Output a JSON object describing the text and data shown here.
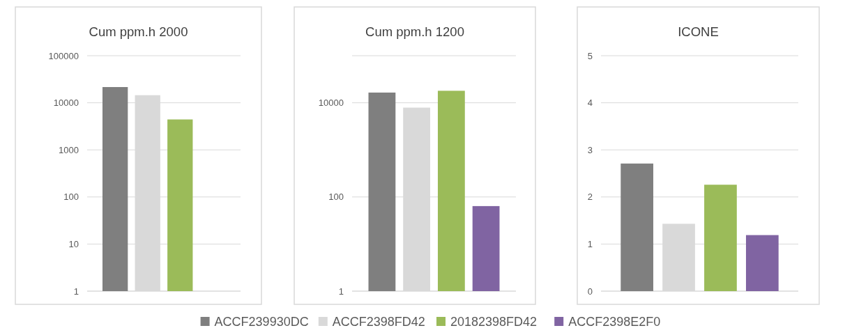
{
  "chart_data": [
    {
      "type": "bar",
      "title": "Cum ppm.h 2000",
      "categories": [
        null
      ],
      "log": true,
      "ylim": [
        1,
        100000
      ],
      "yticks": [
        1,
        10,
        100,
        1000,
        10000,
        100000
      ],
      "grid": "y",
      "legend": "bottom",
      "series": [
        {
          "name": "ACCF239930DC",
          "color": "#7f7f7f",
          "values": [
            21600
          ]
        },
        {
          "name": "ACCF2398FD42",
          "color": "#d9d9d9",
          "values": [
            14500
          ]
        },
        {
          "name": "20182398FD42",
          "color": "#9bbb59",
          "values": [
            4430
          ]
        },
        {
          "name": "ACCF2398E2F0",
          "color": "#8064a2",
          "values": [
            null
          ]
        }
      ]
    },
    {
      "type": "bar",
      "title": "Cum ppm.h 1200",
      "categories": [
        null
      ],
      "log": true,
      "ylim": [
        1,
        100000
      ],
      "yticks": [
        1,
        100,
        10000,
        {
          "value": 100000,
          "label": null
        }
      ],
      "grid": "y",
      "series": [
        {
          "color": "#7f7f7f",
          "values": [
            16500
          ]
        },
        {
          "color": "#d9d9d9",
          "values": [
            7900
          ]
        },
        {
          "color": "#9bbb59",
          "values": [
            18000
          ]
        },
        {
          "color": "#8064a2",
          "values": [
            64
          ]
        }
      ]
    },
    {
      "type": "bar",
      "title": "ICONE",
      "categories": [
        null
      ],
      "ylim": [
        0,
        5
      ],
      "yticks": [
        0,
        1,
        2,
        3,
        4,
        5
      ],
      "grid": "y",
      "series": [
        {
          "color": "#7f7f7f",
          "values": [
            2.71
          ]
        },
        {
          "color": "#d9d9d9",
          "values": [
            1.43
          ]
        },
        {
          "color": "#9bbb59",
          "values": [
            2.26
          ]
        },
        {
          "color": "#8064a2",
          "values": [
            1.19
          ]
        }
      ]
    }
  ]
}
